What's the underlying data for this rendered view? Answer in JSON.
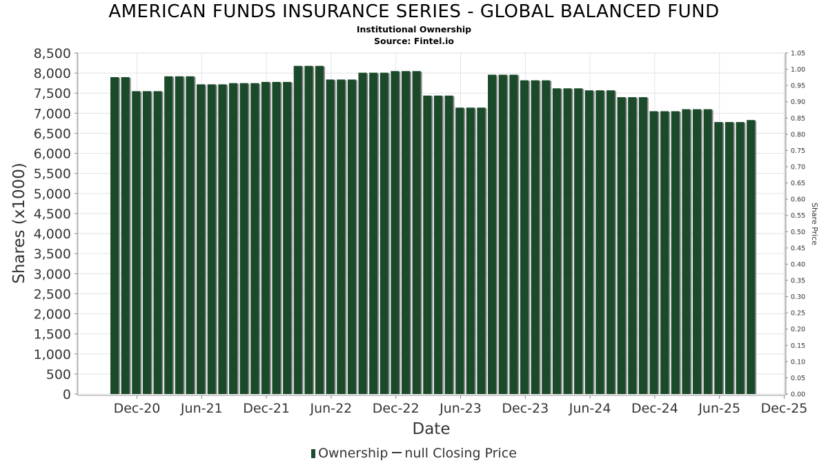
{
  "chart_data": {
    "type": "bar",
    "title": "AMERICAN FUNDS INSURANCE SERIES - GLOBAL BALANCED FUND",
    "subtitle": "Institutional Ownership",
    "source": "Source: Fintel.io",
    "xlabel": "Date",
    "ylabel": "Shares (x1000)",
    "y2label": "Share Price",
    "ylim": [
      0,
      8500
    ],
    "y2lim": [
      0,
      1.05
    ],
    "yticks": [
      "0",
      "500",
      "1,000",
      "1,500",
      "2,000",
      "2,500",
      "3,000",
      "3,500",
      "4,000",
      "4,500",
      "5,000",
      "5,500",
      "6,000",
      "6,500",
      "7,000",
      "7,500",
      "8,000",
      "8,500"
    ],
    "y2ticks": [
      "0.00",
      "0.05",
      "0.10",
      "0.15",
      "0.20",
      "0.25",
      "0.30",
      "0.35",
      "0.40",
      "0.45",
      "0.50",
      "0.55",
      "0.60",
      "0.65",
      "0.70",
      "0.75",
      "0.80",
      "0.85",
      "0.90",
      "0.95",
      "1.00",
      "1.05"
    ],
    "xticks": [
      "Dec-20",
      "Jun-21",
      "Dec-21",
      "Jun-22",
      "Dec-22",
      "Jun-23",
      "Dec-23",
      "Jun-24",
      "Dec-24",
      "Jun-25",
      "Dec-25"
    ],
    "grid": true,
    "legend_position": "bottom",
    "series": [
      {
        "name": "Ownership",
        "color": "#1a4a2a",
        "values": [
          7900,
          7900,
          7550,
          7550,
          7550,
          7920,
          7920,
          7920,
          7720,
          7720,
          7720,
          7750,
          7750,
          7750,
          7780,
          7780,
          7780,
          8180,
          8180,
          8180,
          7840,
          7840,
          7840,
          8010,
          8010,
          8010,
          8050,
          8050,
          8050,
          7440,
          7440,
          7440,
          7140,
          7140,
          7140,
          7960,
          7960,
          7960,
          7820,
          7820,
          7820,
          7620,
          7620,
          7620,
          7570,
          7570,
          7570,
          7400,
          7400,
          7400,
          7050,
          7050,
          7050,
          7100,
          7100,
          7100,
          6780,
          6780,
          6780,
          6830
        ]
      },
      {
        "name": "null Closing Price",
        "color": "#333333",
        "values": []
      }
    ]
  }
}
